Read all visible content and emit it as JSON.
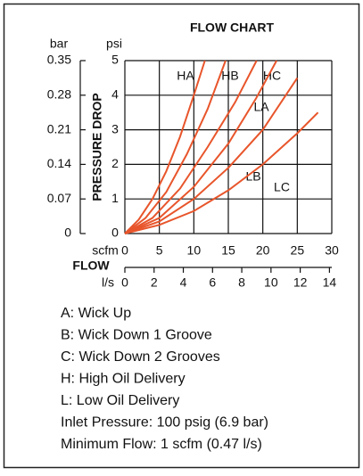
{
  "chart_data": {
    "type": "line",
    "title": "FLOW CHART",
    "ylabel": "PRESSURE DROP",
    "yunit": "psi",
    "y2unit": "bar",
    "xlabel": "FLOW",
    "xunit": "scfm",
    "x2unit": "l/s",
    "xlim": [
      0,
      30
    ],
    "xticks": [
      0,
      5,
      10,
      15,
      20,
      25,
      30
    ],
    "x2lim": [
      0,
      14.16
    ],
    "x2ticks": [
      0,
      2,
      4,
      6,
      8,
      10,
      12,
      14
    ],
    "ylim": [
      0,
      5
    ],
    "yticks": [
      0,
      1,
      2,
      3,
      4,
      5
    ],
    "y2lim": [
      0,
      0.35
    ],
    "y2ticks": [
      0,
      0.07,
      0.14,
      0.21,
      0.28,
      0.35
    ],
    "grid": true,
    "series": [
      {
        "name": "HA",
        "color": "#e8552b",
        "x": [
          0,
          2,
          4,
          6,
          8,
          10,
          11.6
        ],
        "values": [
          0,
          0.4,
          1,
          1.8,
          2.8,
          4,
          5
        ]
      },
      {
        "name": "HB",
        "color": "#e8552b",
        "x": [
          0,
          3,
          6,
          9,
          12,
          14.6
        ],
        "values": [
          0,
          0.45,
          1.2,
          2.3,
          3.6,
          5
        ]
      },
      {
        "name": "HC",
        "color": "#e8552b",
        "x": [
          0,
          4,
          8,
          12,
          16,
          19.1
        ],
        "values": [
          0,
          0.45,
          1.3,
          2.5,
          3.8,
          5
        ]
      },
      {
        "name": "LA",
        "color": "#e8552b",
        "x": [
          0,
          5,
          10,
          15,
          19,
          22
        ],
        "values": [
          0,
          0.45,
          1.35,
          2.6,
          3.9,
          5
        ]
      },
      {
        "name": "LB",
        "color": "#e8552b",
        "x": [
          0,
          5,
          10,
          15,
          20,
          25
        ],
        "values": [
          0,
          0.35,
          1,
          1.9,
          3,
          4.5
        ]
      },
      {
        "name": "LC",
        "color": "#e8552b",
        "x": [
          0,
          5,
          10,
          15,
          20,
          25,
          28
        ],
        "values": [
          0,
          0.25,
          0.65,
          1.25,
          2,
          2.9,
          3.5
        ]
      }
    ],
    "notes": [
      "A:  Wick Up",
      "B:  Wick Down 1 Groove",
      "C:  Wick Down 2 Grooves",
      "H:  High Oil Delivery",
      "L:  Low Oil Delivery",
      "Inlet Pressure: 100 psig (6.9 bar)",
      "Minimum Flow: 1 scfm (0.47 l/s)"
    ]
  }
}
